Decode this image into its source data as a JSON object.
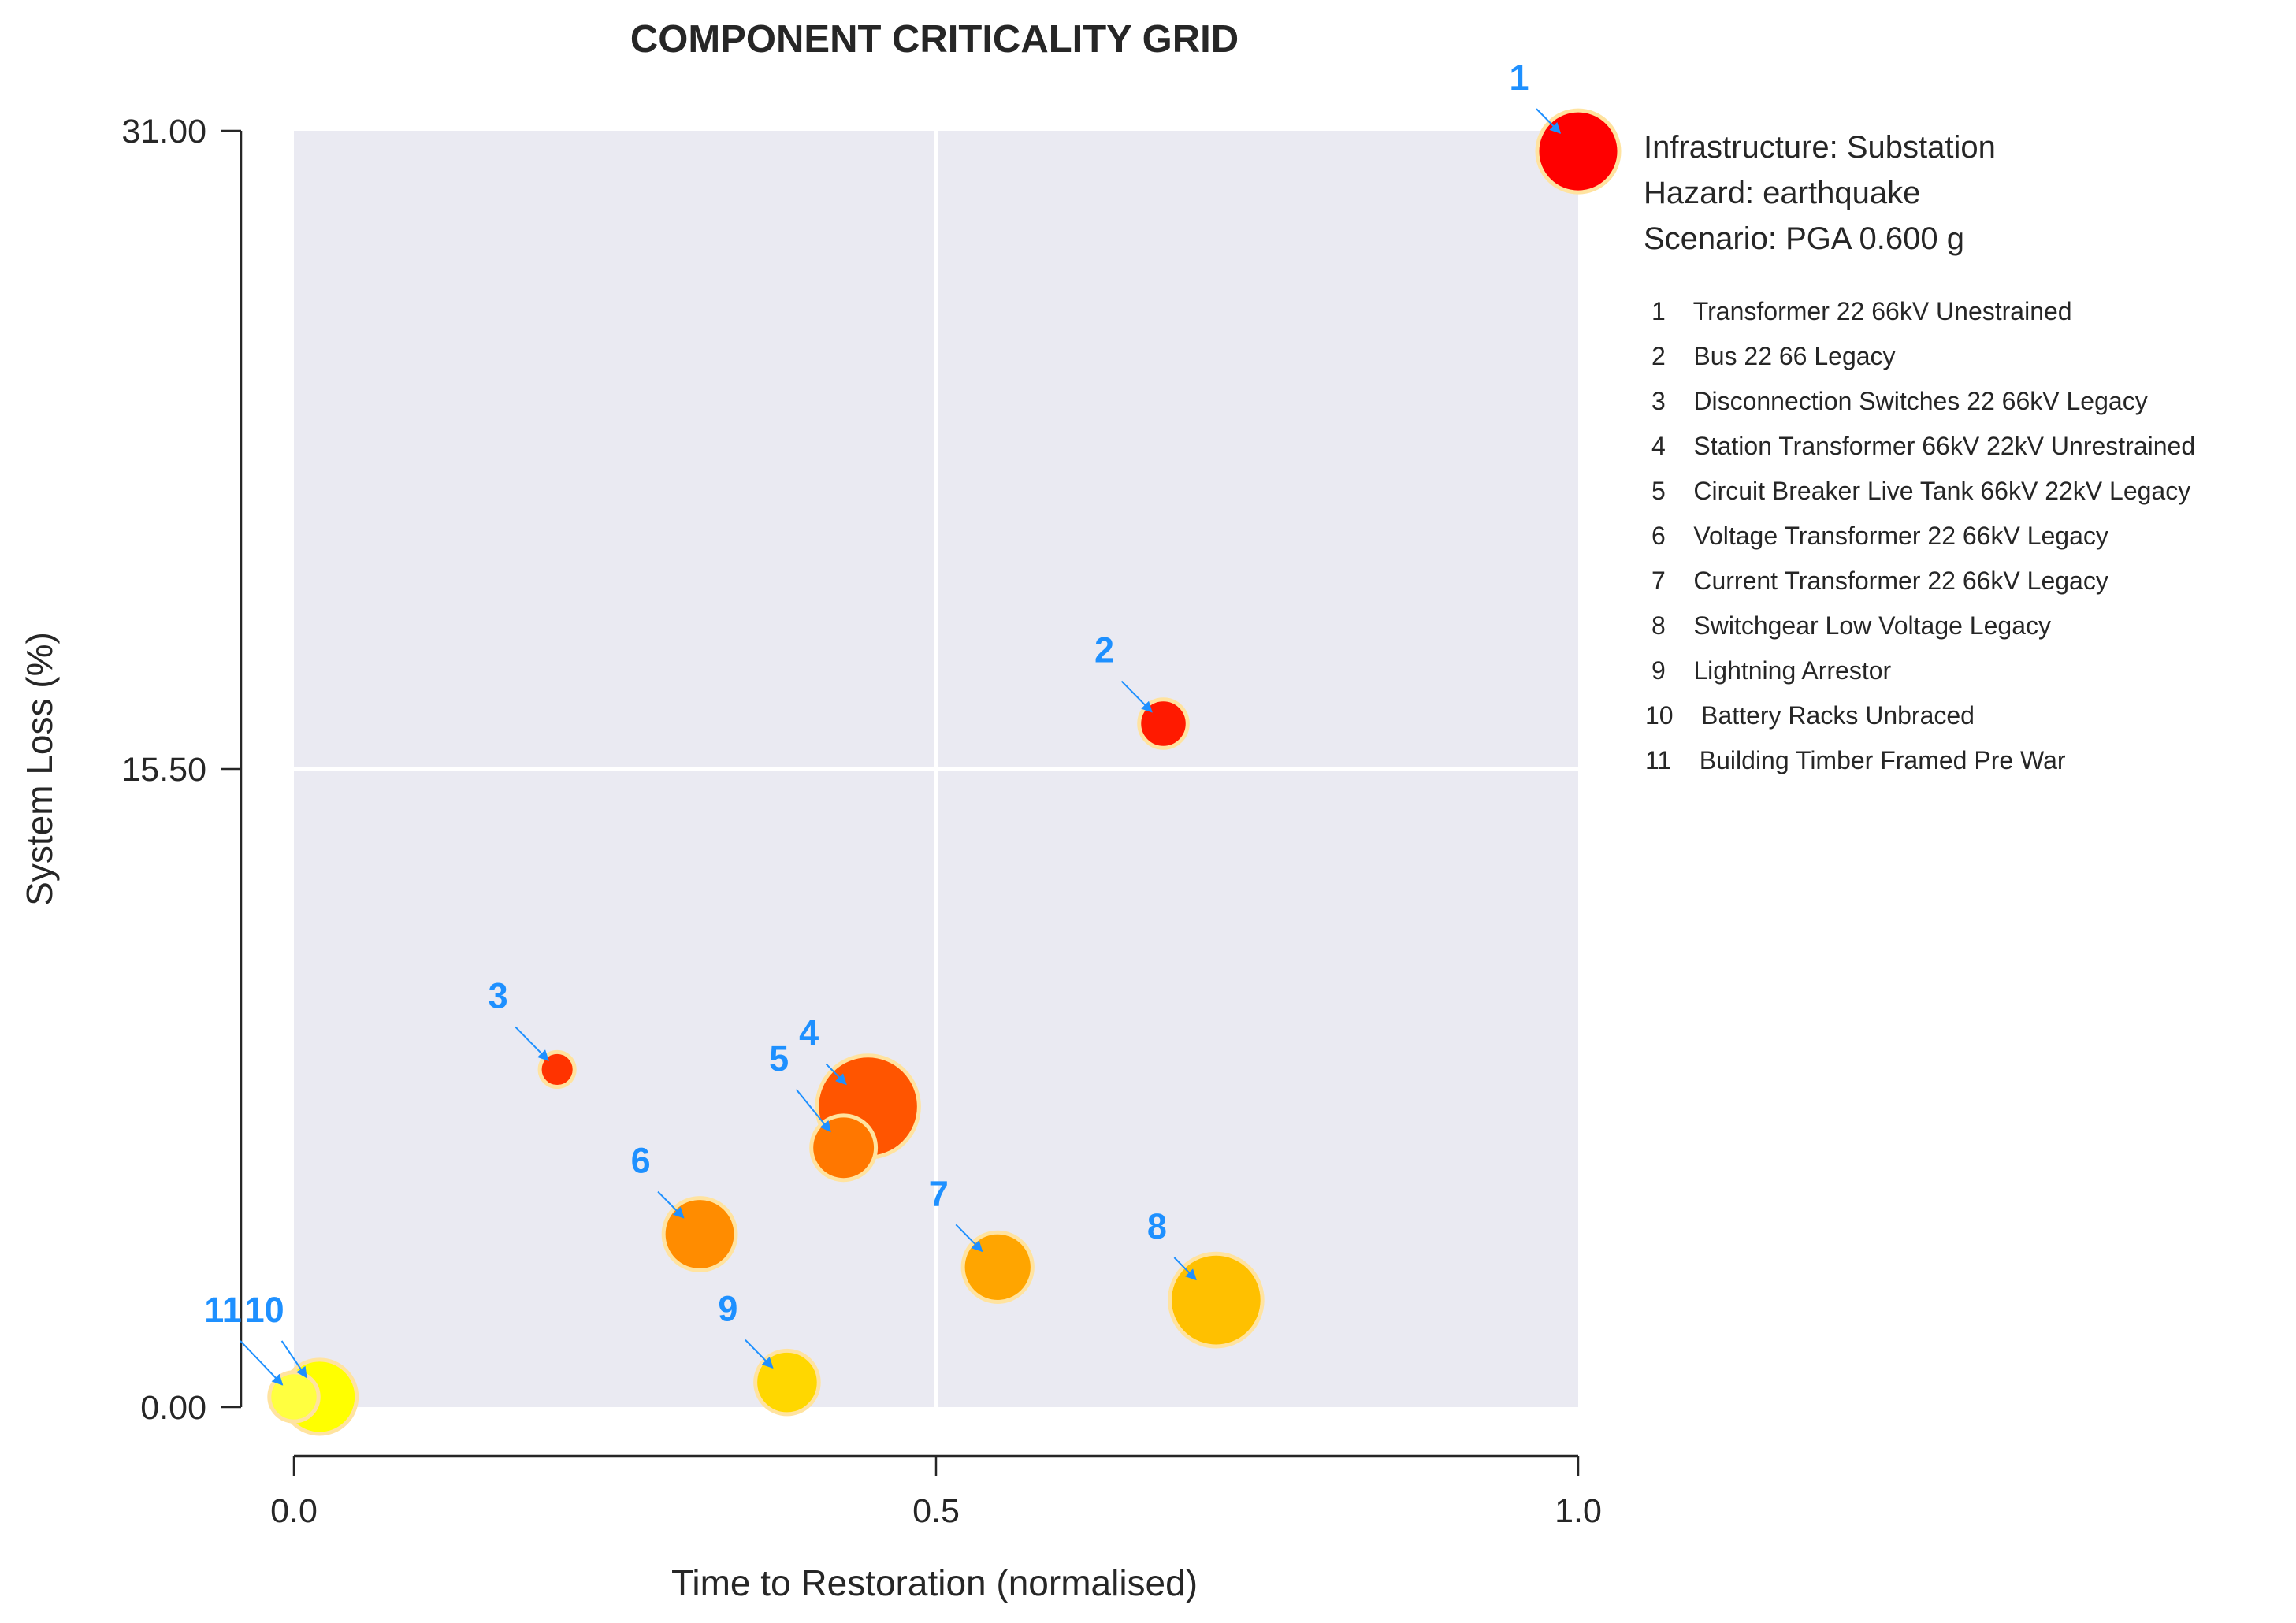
{
  "chart_data": {
    "type": "scatter",
    "title": "COMPONENT CRITICALITY GRID",
    "xlabel": "Time to Restoration (normalised)",
    "ylabel": "System Loss (%)",
    "xlim": [
      0,
      1
    ],
    "ylim": [
      0,
      31
    ],
    "xticks": [
      "0.0",
      "0.5",
      "1.0"
    ],
    "yticks": [
      "0.00",
      "15.50",
      "31.00"
    ],
    "grid": true,
    "info": [
      "Infrastructure: Substation",
      "Hazard: earthquake",
      "Scenario: PGA 0.600 g"
    ],
    "legend": [
      "1    Transformer 22 66kV Unestrained",
      "2    Bus 22 66 Legacy",
      "3    Disconnection Switches 22 66kV Legacy",
      "4    Station Transformer 66kV 22kV Unrestrained",
      "5    Circuit Breaker Live Tank 66kV 22kV Legacy",
      "6    Voltage Transformer 22 66kV Legacy",
      "7    Current Transformer 22 66kV Legacy",
      "8    Switchgear Low Voltage Legacy",
      "9    Lightning Arrestor",
      "10    Battery Racks Unbraced",
      "11    Building Timber Framed Pre War"
    ],
    "points": [
      {
        "label": "1",
        "x": 1.0,
        "y": 30.5,
        "size": 1.0,
        "color": "#ff0000"
      },
      {
        "label": "2",
        "x": 0.677,
        "y": 16.6,
        "size": 0.35,
        "color": "#ff1a00"
      },
      {
        "label": "3",
        "x": 0.205,
        "y": 8.2,
        "size": 0.18,
        "color": "#ff3300"
      },
      {
        "label": "4",
        "x": 0.447,
        "y": 7.3,
        "size": 1.55,
        "color": "#ff5500"
      },
      {
        "label": "5",
        "x": 0.428,
        "y": 6.3,
        "size": 0.62,
        "color": "#ff7700"
      },
      {
        "label": "6",
        "x": 0.316,
        "y": 4.2,
        "size": 0.78,
        "color": "#ff8c00"
      },
      {
        "label": "7",
        "x": 0.548,
        "y": 3.4,
        "size": 0.72,
        "color": "#ffa500"
      },
      {
        "label": "8",
        "x": 0.718,
        "y": 2.6,
        "size": 1.28,
        "color": "#ffc000"
      },
      {
        "label": "9",
        "x": 0.384,
        "y": 0.6,
        "size": 0.6,
        "color": "#ffd700"
      },
      {
        "label": "10",
        "x": 0.02,
        "y": 0.25,
        "size": 0.82,
        "color": "#ffff00"
      },
      {
        "label": "11",
        "x": 0.0,
        "y": 0.25,
        "size": 0.36,
        "color": "#ffff40"
      }
    ]
  },
  "colors": {
    "plot_bg": "#eaeaf2",
    "grid": "#ffffff",
    "annotation": "#1e90ff",
    "bubble_edge": "#ffe3a0"
  }
}
